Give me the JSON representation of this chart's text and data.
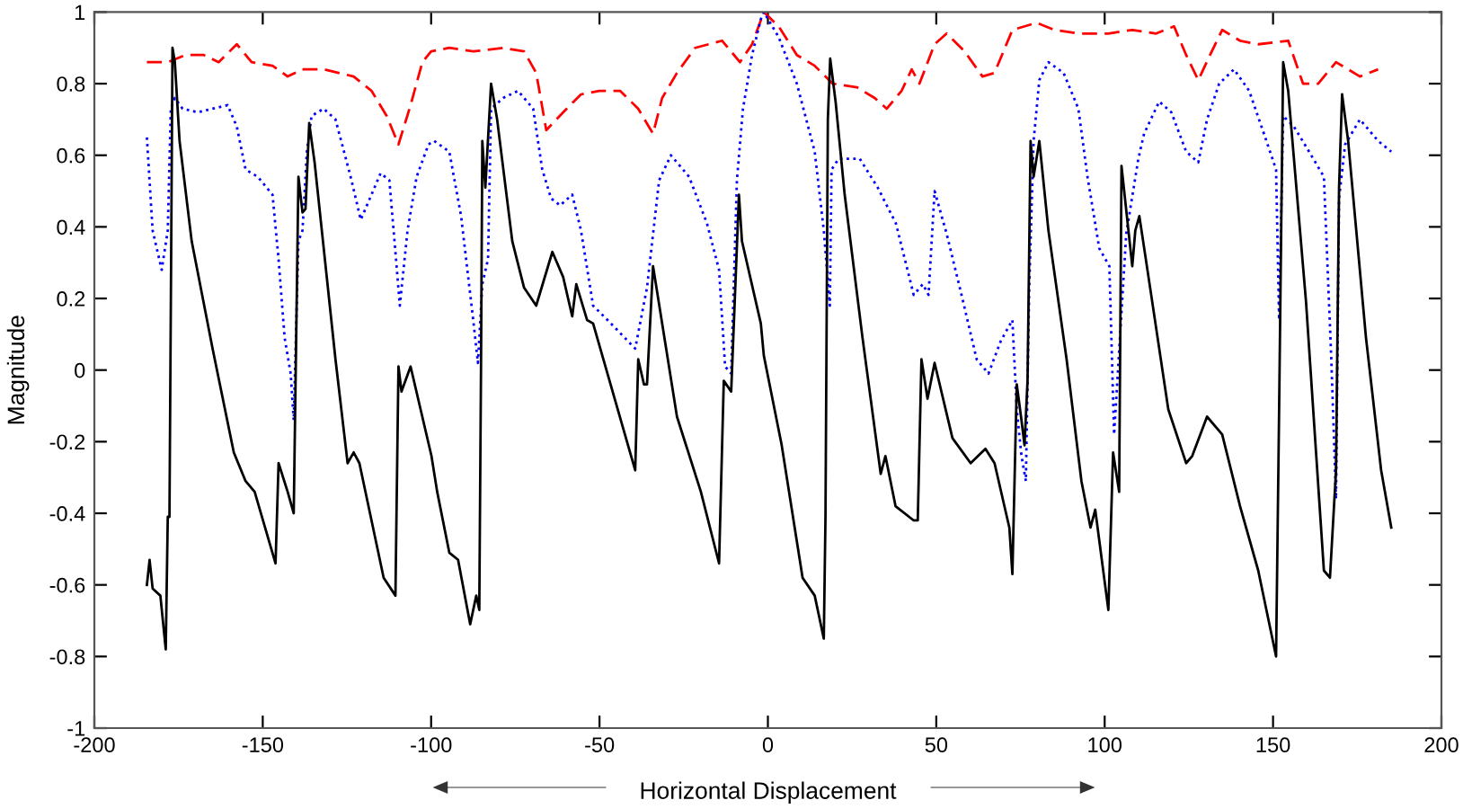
{
  "chart_data": {
    "type": "line",
    "xlabel": "Horizontal Displacement",
    "ylabel": "Magnitude",
    "xlim": [
      -200,
      200
    ],
    "xticks": [
      -200,
      -150,
      -100,
      -50,
      0,
      50,
      100,
      150,
      200
    ],
    "ylim": [
      -1,
      1
    ],
    "yticks": [
      -1,
      -0.8,
      -0.6,
      -0.4,
      -0.2,
      0,
      0.2,
      0.4,
      0.6,
      0.8,
      1
    ],
    "grid": false,
    "marker": "none",
    "series": [
      {
        "color": "#ff0000",
        "line_style": "dashed",
        "x": [
          -184.4,
          -178.2,
          -172.9,
          -167.5,
          -163.1,
          -157.7,
          -153.3,
          -147.1,
          -142.6,
          -138.2,
          -131.9,
          -123.0,
          -117.7,
          -113.2,
          -109.7,
          -106.1,
          -102.6,
          -100.0,
          -94.6,
          -87.5,
          -78.6,
          -72.4,
          -68.8,
          -65.8,
          -60.8,
          -55.5,
          -50.1,
          -43.9,
          -38.5,
          -34.1,
          -31.4,
          -27.0,
          -21.6,
          -13.6,
          -8.3,
          -4.7,
          -1.2,
          3.2,
          8.6,
          13.9,
          19.2,
          26.4,
          31.7,
          35.3,
          39.7,
          42.7,
          45.0,
          49.5,
          53.1,
          58.4,
          63.7,
          67.3,
          72.6,
          79.8,
          85.1,
          92.2,
          101.1,
          108.2,
          115.3,
          120.6,
          124.2,
          127.8,
          131.3,
          134.9,
          140.2,
          145.6,
          154.5,
          158.9,
          163.4,
          168.7,
          175.8,
          181.2
        ],
        "values": [
          0.86,
          0.86,
          0.88,
          0.88,
          0.86,
          0.91,
          0.86,
          0.85,
          0.82,
          0.84,
          0.84,
          0.82,
          0.78,
          0.71,
          0.63,
          0.74,
          0.86,
          0.89,
          0.9,
          0.89,
          0.9,
          0.89,
          0.83,
          0.67,
          0.72,
          0.77,
          0.78,
          0.78,
          0.73,
          0.66,
          0.76,
          0.83,
          0.9,
          0.92,
          0.86,
          0.91,
          1.0,
          0.96,
          0.88,
          0.85,
          0.8,
          0.79,
          0.76,
          0.73,
          0.78,
          0.84,
          0.8,
          0.91,
          0.94,
          0.89,
          0.82,
          0.83,
          0.95,
          0.97,
          0.95,
          0.94,
          0.94,
          0.95,
          0.94,
          0.96,
          0.88,
          0.81,
          0.88,
          0.95,
          0.92,
          0.91,
          0.92,
          0.8,
          0.8,
          0.86,
          0.82,
          0.84
        ]
      },
      {
        "color": "#0000ff",
        "line_style": "dotted",
        "x": [
          -184.4,
          -182.7,
          -180.0,
          -178.2,
          -177.3,
          -176.1,
          -173.8,
          -169.3,
          -164.9,
          -160.4,
          -157.7,
          -155.1,
          -151.5,
          -147.1,
          -145.3,
          -143.5,
          -141.7,
          -140.8,
          -139.4,
          -138.2,
          -136.9,
          -135.5,
          -131.9,
          -128.4,
          -123.9,
          -120.9,
          -117.7,
          -115.0,
          -112.4,
          -110.6,
          -109.3,
          -107.0,
          -104.3,
          -100.8,
          -99.1,
          -94.6,
          -91.1,
          -87.5,
          -86.1,
          -84.8,
          -83.1,
          -82.2,
          -78.6,
          -74.2,
          -69.7,
          -67.0,
          -64.4,
          -61.7,
          -58.1,
          -55.5,
          -51.9,
          -46.6,
          -39.4,
          -35.9,
          -32.3,
          -28.8,
          -23.4,
          -18.1,
          -14.5,
          -12.7,
          -10.9,
          -9.2,
          -7.4,
          -4.7,
          -2.1,
          -1.2,
          3.2,
          8.6,
          13.9,
          16.6,
          18.4,
          18.9,
          21.0,
          27.3,
          32.6,
          38.0,
          43.3,
          46.0,
          47.7,
          49.5,
          53.1,
          57.5,
          62.0,
          65.5,
          69.1,
          72.6,
          73.9,
          75.3,
          76.6,
          77.6,
          78.9,
          80.6,
          83.3,
          87.8,
          92.2,
          94.9,
          98.4,
          101.4,
          102.8,
          106.4,
          110.0,
          111.7,
          116.2,
          119.8,
          124.2,
          127.8,
          130.4,
          134.0,
          138.4,
          142.9,
          147.3,
          150.9,
          151.8,
          153.0,
          156.2,
          160.7,
          165.1,
          167.3,
          168.7,
          169.6,
          171.4,
          175.8,
          181.2,
          185.1
        ],
        "values": [
          0.65,
          0.39,
          0.28,
          0.39,
          0.73,
          0.76,
          0.73,
          0.72,
          0.73,
          0.74,
          0.68,
          0.56,
          0.54,
          0.49,
          0.31,
          0.09,
          -0.01,
          -0.14,
          0.36,
          0.39,
          0.61,
          0.71,
          0.73,
          0.7,
          0.54,
          0.42,
          0.49,
          0.55,
          0.53,
          0.33,
          0.18,
          0.39,
          0.54,
          0.63,
          0.64,
          0.61,
          0.43,
          0.14,
          0.02,
          0.24,
          0.31,
          0.73,
          0.76,
          0.78,
          0.73,
          0.56,
          0.48,
          0.46,
          0.49,
          0.39,
          0.18,
          0.13,
          0.06,
          0.23,
          0.53,
          0.6,
          0.54,
          0.41,
          0.28,
          0.01,
          -0.01,
          0.53,
          0.73,
          0.88,
          0.98,
          1.0,
          0.93,
          0.8,
          0.61,
          0.39,
          0.18,
          0.56,
          0.59,
          0.59,
          0.51,
          0.41,
          0.21,
          0.24,
          0.21,
          0.5,
          0.38,
          0.21,
          0.03,
          -0.01,
          0.08,
          0.14,
          -0.11,
          -0.24,
          -0.31,
          0.23,
          0.64,
          0.81,
          0.86,
          0.83,
          0.73,
          0.54,
          0.34,
          0.29,
          -0.18,
          0.38,
          0.59,
          0.66,
          0.75,
          0.72,
          0.61,
          0.58,
          0.7,
          0.8,
          0.84,
          0.78,
          0.66,
          0.56,
          0.14,
          0.71,
          0.68,
          0.61,
          0.54,
          0.03,
          -0.36,
          0.48,
          0.63,
          0.7,
          0.64,
          0.61
        ]
      },
      {
        "color": "#000000",
        "line_style": "solid",
        "x": [
          -184.4,
          -183.6,
          -182.7,
          -180.4,
          -178.8,
          -178.2,
          -177.7,
          -176.8,
          -176.1,
          -174.7,
          -171.1,
          -164.9,
          -158.6,
          -155.1,
          -152.4,
          -146.2,
          -145.3,
          -142.6,
          -140.8,
          -139.4,
          -138.2,
          -137.3,
          -136.2,
          -134.6,
          -128.4,
          -124.8,
          -123.0,
          -121.3,
          -114.1,
          -110.6,
          -109.7,
          -108.8,
          -106.1,
          -99.9,
          -98.2,
          -94.6,
          -92.0,
          -88.4,
          -86.6,
          -85.7,
          -85.2,
          -84.8,
          -83.9,
          -82.2,
          -80.4,
          -75.9,
          -72.4,
          -68.8,
          -64.0,
          -60.8,
          -58.1,
          -56.9,
          -53.7,
          -51.9,
          -39.4,
          -38.5,
          -36.8,
          -35.9,
          -34.1,
          -27.0,
          -19.9,
          -14.5,
          -13.1,
          -10.9,
          -8.6,
          -7.7,
          -2.1,
          -1.2,
          4.1,
          10.3,
          13.9,
          16.6,
          17.1,
          17.8,
          18.5,
          20.1,
          22.8,
          28.1,
          33.5,
          34.9,
          37.9,
          43.3,
          44.5,
          45.6,
          47.4,
          49.5,
          54.8,
          60.2,
          64.6,
          67.3,
          71.7,
          72.6,
          73.9,
          75.3,
          76.2,
          77.1,
          78.0,
          78.9,
          80.6,
          83.3,
          88.7,
          93.1,
          95.8,
          97.2,
          101.1,
          102.5,
          104.3,
          105.0,
          108.2,
          109.1,
          110.3,
          113.5,
          118.9,
          124.2,
          126.0,
          130.4,
          134.9,
          140.2,
          145.6,
          150.9,
          151.8,
          153.0,
          154.5,
          159.8,
          165.1,
          166.9,
          168.7,
          169.6,
          170.5,
          172.3,
          177.6,
          182.1,
          185.1
        ],
        "values": [
          -0.6,
          -0.53,
          -0.61,
          -0.63,
          -0.78,
          -0.41,
          -0.41,
          0.9,
          0.86,
          0.64,
          0.36,
          0.06,
          -0.23,
          -0.31,
          -0.34,
          -0.54,
          -0.26,
          -0.34,
          -0.4,
          0.54,
          0.44,
          0.45,
          0.69,
          0.58,
          0.03,
          -0.26,
          -0.23,
          -0.26,
          -0.58,
          -0.63,
          0.01,
          -0.06,
          0.01,
          -0.24,
          -0.34,
          -0.51,
          -0.53,
          -0.71,
          -0.63,
          -0.67,
          -0.01,
          0.64,
          0.51,
          0.8,
          0.7,
          0.36,
          0.23,
          0.18,
          0.33,
          0.26,
          0.15,
          0.24,
          0.14,
          0.13,
          -0.28,
          0.03,
          -0.04,
          -0.04,
          0.29,
          -0.13,
          -0.34,
          -0.54,
          -0.03,
          -0.06,
          0.49,
          0.36,
          0.13,
          0.04,
          -0.21,
          -0.58,
          -0.63,
          -0.75,
          -0.41,
          0.7,
          0.87,
          0.75,
          0.49,
          0.09,
          -0.29,
          -0.24,
          -0.38,
          -0.42,
          -0.42,
          0.03,
          -0.08,
          0.02,
          -0.19,
          -0.26,
          -0.22,
          -0.26,
          -0.44,
          -0.57,
          -0.04,
          -0.14,
          -0.21,
          -0.03,
          0.64,
          0.54,
          0.64,
          0.39,
          0.03,
          -0.31,
          -0.44,
          -0.39,
          -0.67,
          -0.23,
          -0.34,
          0.57,
          0.29,
          0.39,
          0.43,
          0.23,
          -0.11,
          -0.26,
          -0.24,
          -0.13,
          -0.18,
          -0.38,
          -0.56,
          -0.8,
          -0.11,
          0.86,
          0.78,
          0.19,
          -0.56,
          -0.58,
          -0.28,
          0.51,
          0.77,
          0.64,
          0.09,
          -0.28,
          -0.44
        ]
      }
    ]
  }
}
